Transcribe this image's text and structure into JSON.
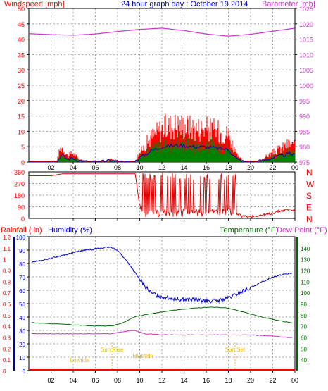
{
  "header": {
    "left_label": "Windspeed [mph]",
    "title": "24 hour graph day : October 19 2014",
    "right_label": "Barometer [mb]"
  },
  "colors": {
    "wind": "#ff0000",
    "gust_mid": "#0000c0",
    "gust_low": "#008000",
    "barometer": "#cc33cc",
    "humidity": "#0000c0",
    "temperature": "#006600",
    "dewpoint": "#cc33cc",
    "rainfall": "#ff0000",
    "sun": "#e0c000",
    "grid": "#a0a0a0"
  },
  "chart_data": [
    {
      "type": "line",
      "title": "24 hour graph day : October 19 2014",
      "x_ticks": [
        "02",
        "04",
        "06",
        "08",
        "10",
        "12",
        "14",
        "16",
        "18",
        "20",
        "22",
        "00"
      ],
      "y_left": {
        "label": "Windspeed [mph]",
        "ticks": [
          0,
          5,
          10,
          15,
          20,
          25,
          30,
          35,
          40,
          45,
          50
        ],
        "ylim": [
          0,
          50
        ]
      },
      "y_right": {
        "label": "Barometer [mb]",
        "ticks": [
          975,
          980,
          985,
          990,
          995,
          1000,
          1005,
          1010,
          1015,
          1020,
          1025
        ],
        "ylim": [
          975,
          1025
        ]
      },
      "series": [
        {
          "name": "Windspeed [mph]",
          "axis": "left",
          "hours": [
            0,
            2.5,
            2.8,
            3.0,
            3.5,
            4.0,
            4.5,
            5.5,
            6.5,
            7.5,
            8.5,
            9.5,
            10.0,
            11.0,
            12.0,
            13.0,
            14.0,
            15.0,
            16.0,
            17.0,
            18.0,
            18.8,
            19.5,
            20.5,
            21.5,
            22.5,
            23.5,
            24.0
          ],
          "values": [
            0,
            0,
            4,
            5,
            2,
            3,
            1,
            0,
            0,
            1,
            0,
            0,
            3,
            8,
            11,
            12,
            12,
            11,
            11,
            10,
            9,
            2,
            0,
            0,
            2,
            4,
            6,
            5
          ]
        },
        {
          "name": "Barometer [mb]",
          "axis": "right",
          "hours": [
            0,
            2,
            4,
            6,
            8,
            10,
            12,
            14,
            16,
            18,
            20,
            22,
            24
          ],
          "values": [
            1016.8,
            1016.5,
            1016.3,
            1016.7,
            1017.5,
            1018.2,
            1018.6,
            1017.8,
            1016.7,
            1016.0,
            1016.6,
            1017.6,
            1018.6
          ]
        }
      ]
    },
    {
      "type": "scatter",
      "x_ticks": [
        "02",
        "04",
        "06",
        "08",
        "10",
        "12",
        "14",
        "16",
        "18",
        "20",
        "22",
        "00"
      ],
      "y_left": {
        "ticks": [
          0,
          90,
          180,
          270,
          360
        ],
        "ylim": [
          0,
          360
        ]
      },
      "y_right": {
        "ticks": [
          "N",
          "W",
          "S",
          "E",
          "N"
        ]
      },
      "series": [
        {
          "name": "Wind direction",
          "hours": [
            0,
            2,
            3,
            5,
            8,
            9.6,
            10.0,
            10.5,
            12,
            14,
            16,
            18,
            18.5,
            19.2,
            20,
            21.5,
            22.5,
            23.5,
            24
          ],
          "values": [
            330,
            330,
            345,
            345,
            345,
            345,
            90,
            35,
            40,
            45,
            45,
            50,
            50,
            15,
            15,
            30,
            55,
            70,
            60
          ]
        }
      ]
    },
    {
      "type": "line",
      "x_ticks": [
        "02",
        "04",
        "06",
        "08",
        "10",
        "12",
        "14",
        "16",
        "18",
        "20",
        "22",
        "00"
      ],
      "y_rain": {
        "label": "Rainfall (.in)",
        "ticks": [
          0,
          0.1,
          0.2,
          0.3,
          0.4,
          0.5,
          0.6,
          0.7,
          0.8,
          0.9,
          1,
          1.1,
          1.2
        ],
        "ylim": [
          0,
          1.2
        ]
      },
      "y_humidity": {
        "label": "Humidity (%)",
        "ticks": [
          0,
          10,
          20,
          30,
          40,
          50,
          60,
          70,
          80,
          90,
          100
        ],
        "ylim": [
          0,
          100
        ]
      },
      "y_temperature": {
        "label": "Temperature (°F)",
        "label2": "Dew Point (°F)",
        "ticks": [
          40,
          50,
          60,
          70,
          80,
          90,
          100,
          110,
          120,
          130,
          140
        ],
        "ylim": [
          30,
          150
        ]
      },
      "annotations": [
        {
          "label": "Lowtide",
          "hour": 4.6
        },
        {
          "label": "Sun Rise",
          "hour": 7.5
        },
        {
          "label": "Hightide",
          "hour": 10.3
        },
        {
          "label": "Sun Set",
          "hour": 18.6
        }
      ],
      "series": [
        {
          "name": "Humidity (%)",
          "hours": [
            0,
            1,
            2,
            3,
            4,
            5,
            6,
            7,
            7.5,
            8,
            9,
            10,
            11,
            12,
            13,
            14,
            15,
            16,
            17,
            18,
            19,
            20,
            21,
            22,
            23,
            24
          ],
          "values": [
            81,
            82,
            84,
            86,
            88,
            90,
            91,
            92,
            92,
            90,
            80,
            68,
            58,
            55,
            54,
            53,
            53,
            52,
            52,
            54,
            58,
            62,
            66,
            70,
            72,
            73
          ]
        },
        {
          "name": "Temperature (°F)",
          "hours": [
            0,
            2,
            4,
            6,
            7.5,
            8.5,
            9.5,
            11,
            13,
            15,
            16.5,
            18,
            19.5,
            21,
            22.5,
            24
          ],
          "values": [
            73,
            72,
            71,
            70,
            70,
            73,
            78,
            81,
            84,
            86,
            87,
            86,
            82,
            78,
            75,
            72
          ]
        },
        {
          "name": "Dew Point (°F)",
          "hours": [
            0,
            2,
            4,
            6,
            7.5,
            8.5,
            9.5,
            10.5,
            12,
            14,
            16,
            18,
            20,
            22,
            24
          ],
          "values": [
            63,
            63,
            63,
            63,
            63,
            65,
            66,
            63,
            62,
            62,
            62,
            62,
            62,
            61,
            59
          ]
        },
        {
          "name": "Rainfall (.in)",
          "hours": [
            0,
            24
          ],
          "values": [
            0,
            0
          ]
        }
      ]
    }
  ]
}
